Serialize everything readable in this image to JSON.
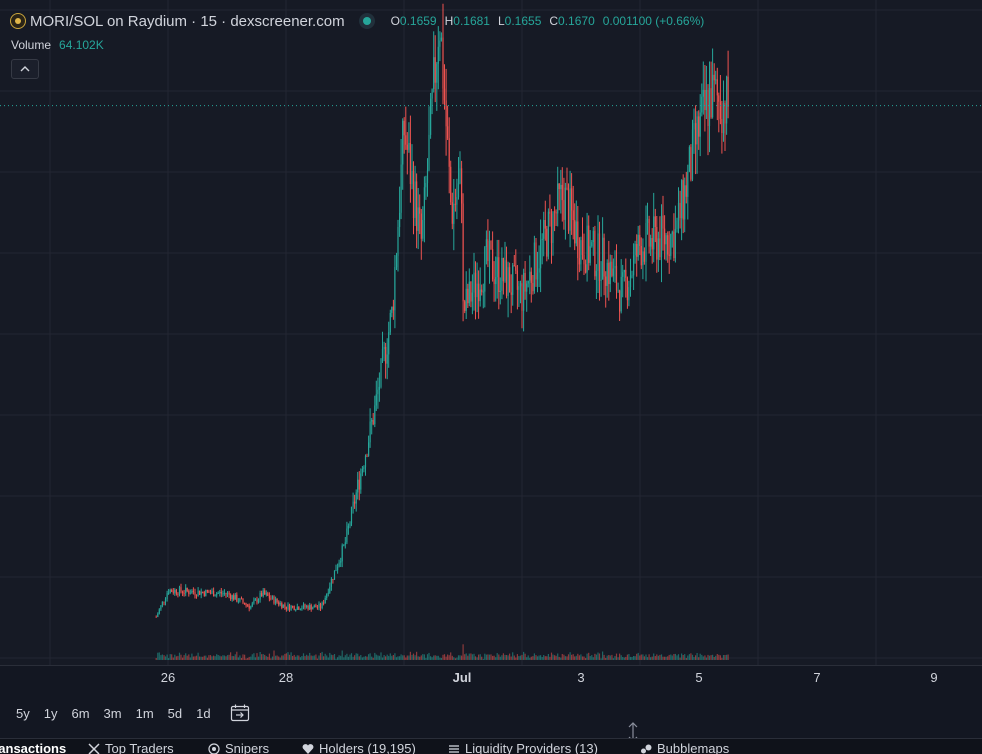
{
  "header": {
    "title": "MORI/SOL on Raydium · 15 · dexscreener.com",
    "ohlc": [
      {
        "key": "O",
        "value": "0.1659"
      },
      {
        "key": "H",
        "value": "0.1681"
      },
      {
        "key": "L",
        "value": "0.1655"
      },
      {
        "key": "C",
        "value": "0.1670"
      }
    ],
    "change": "0.001100 (+0.66%)"
  },
  "volume": {
    "label": "Volume",
    "value": "64.102K"
  },
  "colors": {
    "up": "#26a69a",
    "down": "#ef5350",
    "background": "#161a25",
    "grid": "#232632"
  },
  "x_axis": {
    "ticks": [
      {
        "label": "26",
        "bold": false
      },
      {
        "label": "28",
        "bold": false
      },
      {
        "label": "Jul",
        "bold": true
      },
      {
        "label": "3",
        "bold": false
      },
      {
        "label": "5",
        "bold": false
      },
      {
        "label": "7",
        "bold": false
      },
      {
        "label": "9",
        "bold": false
      }
    ]
  },
  "ranges": [
    "5y",
    "1y",
    "6m",
    "3m",
    "1m",
    "5d",
    "1d"
  ],
  "goto_icon": "calendar-goto-icon",
  "tabs": [
    {
      "label": "Transactions",
      "icon": "none",
      "active": true
    },
    {
      "label": "Top Traders",
      "icon": "trader-icon",
      "active": false
    },
    {
      "label": "Snipers",
      "icon": "target-icon",
      "active": false
    },
    {
      "label": "Holders (19,195)",
      "icon": "heart-icon",
      "active": false
    },
    {
      "label": "Liquidity Providers (13)",
      "icon": "list-icon",
      "active": false
    },
    {
      "label": "Bubblemaps",
      "icon": "bubbles-icon",
      "active": false
    }
  ],
  "chart_data": {
    "type": "candlestick",
    "x_ticks": [
      "26",
      "28",
      "Jul",
      "3",
      "5",
      "7",
      "9"
    ],
    "price_path": [
      {
        "x": "25.8",
        "y": 0.013
      },
      {
        "x": "26.0",
        "y": 0.021
      },
      {
        "x": "27.0",
        "y": 0.02
      },
      {
        "x": "27.4",
        "y": 0.016
      },
      {
        "x": "27.6",
        "y": 0.02
      },
      {
        "x": "28.0",
        "y": 0.016
      },
      {
        "x": "28.6",
        "y": 0.016
      },
      {
        "x": "29.0",
        "y": 0.035
      },
      {
        "x": "29.5",
        "y": 0.075
      },
      {
        "x": "29.8",
        "y": 0.105
      },
      {
        "x": "30.0",
        "y": 0.16
      },
      {
        "x": "30.3",
        "y": 0.125
      },
      {
        "x": "30.6",
        "y": 0.195
      },
      {
        "x": "30.8",
        "y": 0.135
      },
      {
        "x": "31.0",
        "y": 0.145
      },
      {
        "x": "1",
        "y": 0.105
      },
      {
        "x": "1.4",
        "y": 0.12
      },
      {
        "x": "2.0",
        "y": 0.11
      },
      {
        "x": "2.7",
        "y": 0.14
      },
      {
        "x": "3.0",
        "y": 0.125
      },
      {
        "x": "3.4",
        "y": 0.12
      },
      {
        "x": "3.7",
        "y": 0.11
      },
      {
        "x": "4.0",
        "y": 0.125
      },
      {
        "x": "4.6",
        "y": 0.128
      },
      {
        "x": "5.0",
        "y": 0.16
      },
      {
        "x": "5.2",
        "y": 0.17
      },
      {
        "x": "5.5",
        "y": 0.167
      }
    ],
    "last_price": 0.167,
    "series_colors": {
      "up": "#26a69a",
      "down": "#ef5350"
    },
    "grid": true
  }
}
